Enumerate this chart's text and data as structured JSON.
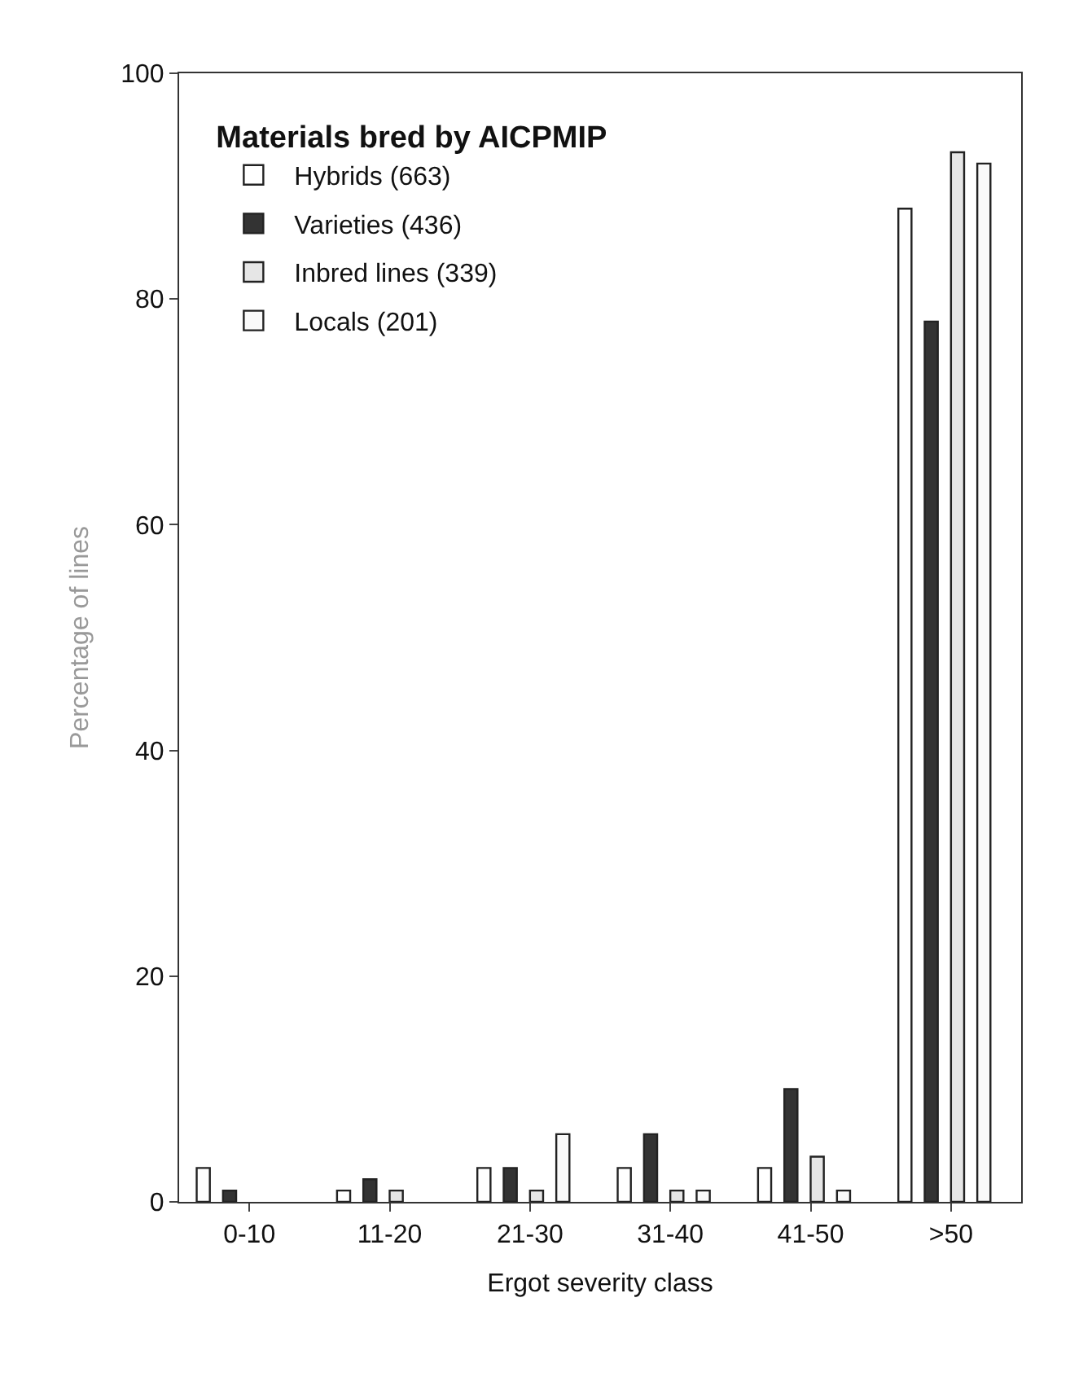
{
  "chart_data": {
    "type": "bar",
    "xlabel": "Ergot severity class",
    "ylabel": "Percentage of lines",
    "legend_title": "Materials bred by AICPMIP",
    "categories": [
      "0-10",
      "11-20",
      "21-30",
      "31-40",
      "41-50",
      ">50"
    ],
    "series": [
      {
        "name": "Hybrids (663)",
        "color": "#ffffff",
        "values": [
          3,
          1,
          3,
          3,
          3,
          88
        ]
      },
      {
        "name": "Varieties (436)",
        "color": "#333333",
        "values": [
          1,
          2,
          3,
          6,
          10,
          78
        ]
      },
      {
        "name": "Inbred lines (339)",
        "color": "#e6e6e6",
        "values": [
          0,
          1,
          1,
          1,
          4,
          93
        ]
      },
      {
        "name": "Locals (201)",
        "color": "#fafafa",
        "values": [
          0,
          0,
          6,
          1,
          1,
          92
        ]
      }
    ],
    "ylim": [
      0,
      100
    ],
    "yticks": [
      0,
      20,
      40,
      60,
      80,
      100
    ],
    "legend": "top left"
  }
}
